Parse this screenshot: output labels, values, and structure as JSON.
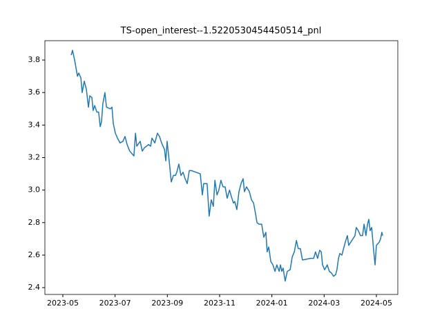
{
  "chart_data": {
    "type": "line",
    "title": "TS-open_interest--1.5220530454450514_pnl",
    "x": [
      0.32,
      0.37,
      0.45,
      0.56,
      0.61,
      0.69,
      0.74,
      0.82,
      0.9,
      0.98,
      1.03,
      1.11,
      1.16,
      1.22,
      1.3,
      1.37,
      1.43,
      1.48,
      1.53,
      1.61,
      1.67,
      1.82,
      1.88,
      1.93,
      2.01,
      2.09,
      2.19,
      2.3,
      2.38,
      2.46,
      2.56,
      2.72,
      2.78,
      2.83,
      2.96,
      3.04,
      3.12,
      3.2,
      3.28,
      3.36,
      3.41,
      3.52,
      3.62,
      3.7,
      3.78,
      3.89,
      3.94,
      3.99,
      4.07,
      4.15,
      4.23,
      4.31,
      4.36,
      4.44,
      4.52,
      4.6,
      4.68,
      4.76,
      4.84,
      4.92,
      5.26,
      5.34,
      5.39,
      5.52,
      5.6,
      5.68,
      5.76,
      5.82,
      5.9,
      5.97,
      6.05,
      6.13,
      6.21,
      6.29,
      6.38,
      6.45,
      6.53,
      6.58,
      6.66,
      6.74,
      6.82,
      6.9,
      6.95,
      7.03,
      7.14,
      7.22,
      7.3,
      7.38,
      7.43,
      7.51,
      7.61,
      7.69,
      7.77,
      7.82,
      7.88,
      7.96,
      8.04,
      8.12,
      8.19,
      8.28,
      8.33,
      8.38,
      8.43,
      8.51,
      8.59,
      8.7,
      8.78,
      8.86,
      8.94,
      9.01,
      9.09,
      9.17,
      9.49,
      9.6,
      9.67,
      9.75,
      9.83,
      9.89,
      9.94,
      10.02,
      10.12,
      10.2,
      10.28,
      10.36,
      10.44,
      10.49,
      10.55,
      10.6,
      10.68,
      10.76,
      10.81,
      10.89,
      10.94,
      11.02,
      11.1,
      11.18,
      11.23,
      11.31,
      11.39,
      11.47,
      11.53,
      11.6,
      11.66,
      11.71,
      11.76,
      11.82,
      11.9,
      11.95,
      12.0,
      12.11,
      12.16,
      12.21,
      12.24
    ],
    "series": [
      {
        "color": "#1f77b4",
        "values": [
          3.83,
          3.86,
          3.8,
          3.7,
          3.72,
          3.69,
          3.6,
          3.67,
          3.62,
          3.51,
          3.58,
          3.57,
          3.49,
          3.52,
          3.48,
          3.48,
          3.39,
          3.42,
          3.53,
          3.6,
          3.51,
          3.5,
          3.51,
          3.41,
          3.35,
          3.32,
          3.29,
          3.3,
          3.33,
          3.28,
          3.24,
          3.21,
          3.35,
          3.27,
          3.3,
          3.24,
          3.26,
          3.27,
          3.28,
          3.27,
          3.32,
          3.29,
          3.35,
          3.33,
          3.29,
          3.25,
          3.18,
          3.3,
          3.18,
          3.05,
          3.09,
          3.09,
          3.11,
          3.16,
          3.09,
          3.11,
          3.07,
          3.04,
          3.12,
          3.12,
          3.1,
          2.97,
          3.04,
          3.04,
          2.84,
          2.94,
          2.9,
          3.06,
          2.97,
          3.0,
          3.06,
          3.02,
          3.02,
          2.95,
          3.0,
          2.96,
          2.92,
          2.93,
          2.88,
          2.99,
          3.04,
          3.07,
          2.99,
          3.02,
          2.99,
          2.94,
          2.92,
          2.85,
          2.8,
          2.79,
          2.79,
          2.71,
          2.74,
          2.62,
          2.65,
          2.56,
          2.54,
          2.5,
          2.54,
          2.5,
          2.54,
          2.5,
          2.52,
          2.44,
          2.5,
          2.51,
          2.59,
          2.62,
          2.69,
          2.64,
          2.64,
          2.57,
          2.58,
          2.58,
          2.62,
          2.58,
          2.63,
          2.62,
          2.54,
          2.51,
          2.54,
          2.5,
          2.49,
          2.47,
          2.48,
          2.51,
          2.58,
          2.61,
          2.6,
          2.65,
          2.68,
          2.72,
          2.66,
          2.68,
          2.7,
          2.72,
          2.77,
          2.75,
          2.72,
          2.72,
          2.79,
          2.72,
          2.79,
          2.82,
          2.75,
          2.77,
          2.62,
          2.54,
          2.66,
          2.68,
          2.7,
          2.74,
          2.72
        ]
      }
    ],
    "xlim": [
      -0.687,
      12.82
    ],
    "xticks": [
      {
        "value": 0,
        "label": "2023-05"
      },
      {
        "value": 2,
        "label": "2023-07"
      },
      {
        "value": 4,
        "label": "2023-09"
      },
      {
        "value": 6,
        "label": "2023-11"
      },
      {
        "value": 8,
        "label": "2024-01"
      },
      {
        "value": 10,
        "label": "2024-03"
      },
      {
        "value": 12,
        "label": "2024-05"
      }
    ],
    "ylim": [
      2.358,
      3.919
    ],
    "yticks": [
      2.4,
      2.6,
      2.8,
      {
        "value": 3,
        "label": "3.0"
      },
      3.2,
      3.4,
      3.6,
      3.8
    ]
  }
}
